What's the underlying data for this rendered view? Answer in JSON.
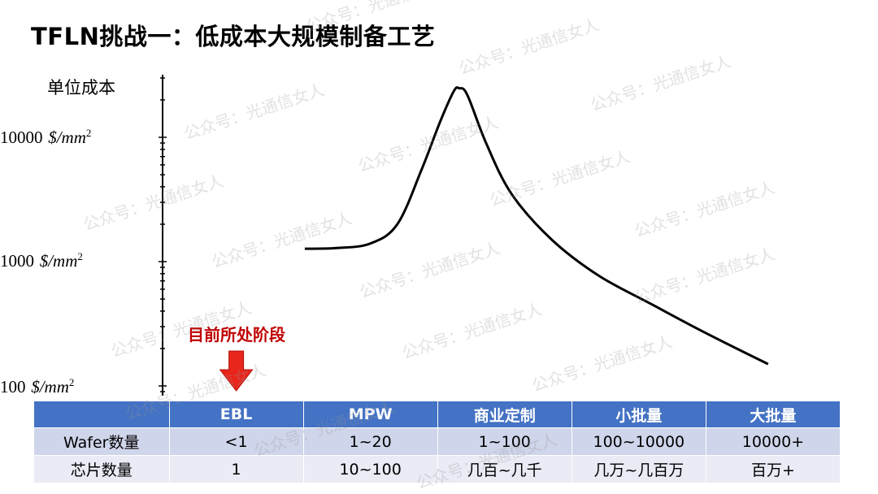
{
  "title": "TFLN挑战一：低成本大规模制备工艺",
  "watermark": "公众号：光通信女人",
  "chart_data": {
    "type": "line",
    "title": "TFLN挑战一：低成本大规模制备工艺",
    "ylabel": "单位成本",
    "yscale": "log",
    "ylim": [
      100,
      30000
    ],
    "yticks": [
      {
        "value": 10000,
        "num": "10000",
        "unit_prefix": "$/",
        "unit_var": "mm",
        "unit_exp": "2"
      },
      {
        "value": 1000,
        "num": "1000",
        "unit_prefix": "$/",
        "unit_var": "mm",
        "unit_exp": "2"
      },
      {
        "value": 100,
        "num": "100",
        "unit_prefix": "$/",
        "unit_var": "mm",
        "unit_exp": "2"
      }
    ],
    "x_categories": [
      "EBL",
      "MPW",
      "商业定制",
      "小批量",
      "大批量"
    ],
    "curve_points": [
      {
        "x": 1.51,
        "y": 1270
      },
      {
        "x": 1.75,
        "y": 1285
      },
      {
        "x": 2.0,
        "y": 1400
      },
      {
        "x": 2.2,
        "y": 2000
      },
      {
        "x": 2.38,
        "y": 5500
      },
      {
        "x": 2.52,
        "y": 13500
      },
      {
        "x": 2.62,
        "y": 23500
      },
      {
        "x": 2.66,
        "y": 24800
      },
      {
        "x": 2.72,
        "y": 22000
      },
      {
        "x": 2.86,
        "y": 9000
      },
      {
        "x": 3.05,
        "y": 3500
      },
      {
        "x": 3.35,
        "y": 1500
      },
      {
        "x": 3.7,
        "y": 770
      },
      {
        "x": 4.1,
        "y": 450
      },
      {
        "x": 4.5,
        "y": 265
      },
      {
        "x": 4.96,
        "y": 150
      }
    ],
    "annotation": {
      "text": "目前所处阶段",
      "category": "EBL"
    }
  },
  "table": {
    "header_blank": "",
    "columns": [
      "EBL",
      "MPW",
      "商业定制",
      "小批量",
      "大批量"
    ],
    "rows": [
      {
        "label": "Wafer数量",
        "cells": [
          "<1",
          "1~20",
          "1~100",
          "100~10000",
          "10000+"
        ]
      },
      {
        "label": "芯片数量",
        "cells": [
          "1",
          "10~100",
          "几百~几千",
          "几万~几百万",
          "百万+"
        ]
      }
    ]
  },
  "colors": {
    "table_header": "#4472c4",
    "table_row1": "#cfd5ea",
    "table_row2": "#e9ebf5",
    "arrow": "#e8261c",
    "callout": "#c00000"
  }
}
